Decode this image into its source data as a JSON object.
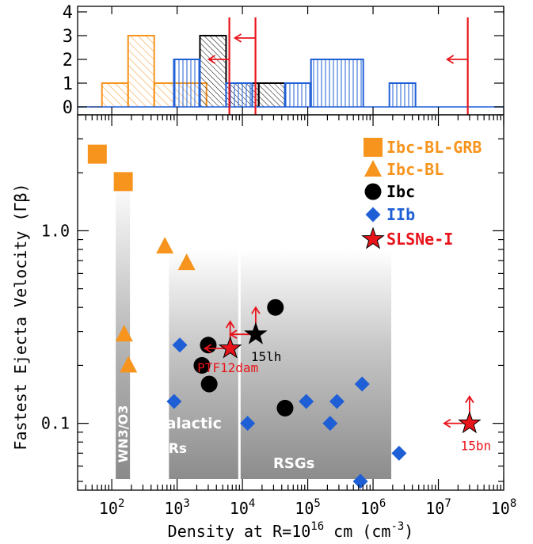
{
  "chart_data": [
    {
      "type": "bar",
      "panel": "histogram",
      "xlim_log10": [
        1.5,
        8.0
      ],
      "ylim": [
        0,
        4
      ],
      "yticks": [
        0,
        1,
        2,
        3,
        4
      ],
      "ytick_labels": [
        "0",
        "1",
        "2",
        "3",
        "4"
      ],
      "series": [
        {
          "name": "Ibc-BL",
          "color": "#f7941d",
          "hatch": "diagonal",
          "bins_log10": [
            [
              1.65,
              1.85,
              0
            ],
            [
              1.85,
              2.25,
              1
            ],
            [
              2.25,
              2.65,
              3
            ],
            [
              2.65,
              3.45,
              1
            ]
          ]
        },
        {
          "name": "Ibc",
          "color": "#000000",
          "hatch": "diagonal-dense",
          "bins_log10": [
            [
              3.35,
              3.75,
              3
            ],
            [
              3.75,
              4.25,
              1
            ],
            [
              4.25,
              4.65,
              1
            ]
          ]
        },
        {
          "name": "IIb",
          "color": "#1f5fd6",
          "hatch": "vertical",
          "bins_log10": [
            [
              2.95,
              3.35,
              2
            ],
            [
              3.75,
              4.15,
              1
            ],
            [
              4.65,
              5.05,
              1
            ],
            [
              5.05,
              5.85,
              2
            ],
            [
              6.25,
              6.65,
              1
            ]
          ]
        }
      ],
      "upper_limits_log10": [
        {
          "x": 3.8,
          "y": 2.0
        },
        {
          "x": 4.2,
          "y": 2.9
        },
        {
          "x": 7.45,
          "y": 2.0
        }
      ]
    },
    {
      "type": "scatter",
      "panel": "main",
      "xlabel": "Density at R=10",
      "xlabel_sup": "16",
      "xlabel_mid": " cm (cm",
      "xlabel_sup2": "-3",
      "xlabel_end": ")",
      "ylabel": "Fastest Ejecta Velocity (Γβ)",
      "x_scale": "log",
      "y_scale": "log",
      "xlim": [
        30,
        100000000
      ],
      "ylim": [
        0.045,
        4.0
      ],
      "xticks": [
        {
          "value": 100,
          "base": "10",
          "exp": "2"
        },
        {
          "value": 1000,
          "base": "10",
          "exp": "3"
        },
        {
          "value": 10000,
          "base": "10",
          "exp": "4"
        },
        {
          "value": 100000,
          "base": "10",
          "exp": "5"
        },
        {
          "value": 1000000,
          "base": "10",
          "exp": "6"
        },
        {
          "value": 10000000,
          "base": "10",
          "exp": "7"
        },
        {
          "value": 100000000,
          "base": "10",
          "exp": "8"
        }
      ],
      "yticks": [
        {
          "value": 0.1,
          "label": "0.1"
        },
        {
          "value": 1.0,
          "label": "1.0"
        }
      ],
      "legend": {
        "placement": "top-right",
        "entries": [
          {
            "label": "Ibc-BL-GRB",
            "marker": "square",
            "color": "#f7941d"
          },
          {
            "label": "Ibc-BL",
            "marker": "triangle",
            "color": "#f7941d"
          },
          {
            "label": "Ibc",
            "marker": "circle",
            "color": "#000000"
          },
          {
            "label": "IIb",
            "marker": "diamond",
            "color": "#1f5fd6"
          },
          {
            "label": "SLSNe-I",
            "marker": "star",
            "color": "#e8141b"
          }
        ]
      },
      "regions": [
        {
          "label": "WN3/O3",
          "x": [
            115,
            190
          ],
          "y": [
            0.045,
            1.85
          ],
          "orientation": "vertical"
        },
        {
          "label_line1": "Galactic",
          "label_line2": "WRs",
          "x": [
            750,
            9000
          ],
          "y": [
            0.045,
            0.8
          ]
        },
        {
          "label": "RSGs",
          "x": [
            9000,
            1900000
          ],
          "y": [
            0.045,
            0.8
          ]
        }
      ],
      "series": [
        {
          "name": "Ibc-BL-GRB",
          "marker": "square",
          "color": "#f7941d",
          "points": [
            {
              "x": 60,
              "y": 2.5
            },
            {
              "x": 150,
              "y": 1.8
            }
          ]
        },
        {
          "name": "Ibc-BL",
          "marker": "triangle",
          "color": "#f7941d",
          "points": [
            {
              "x": 650,
              "y": 0.83
            },
            {
              "x": 1400,
              "y": 0.68
            },
            {
              "x": 155,
              "y": 0.29
            },
            {
              "x": 180,
              "y": 0.2
            }
          ]
        },
        {
          "name": "Ibc",
          "marker": "circle",
          "color": "#000000",
          "points": [
            {
              "x": 3000,
              "y": 0.255
            },
            {
              "x": 2400,
              "y": 0.2
            },
            {
              "x": 3100,
              "y": 0.16
            },
            {
              "x": 32000,
              "y": 0.4
            },
            {
              "x": 45000,
              "y": 0.12
            }
          ]
        },
        {
          "name": "IIb",
          "marker": "diamond",
          "color": "#1f5fd6",
          "points": [
            {
              "x": 1100,
              "y": 0.255
            },
            {
              "x": 900,
              "y": 0.13
            },
            {
              "x": 12000,
              "y": 0.1
            },
            {
              "x": 95000,
              "y": 0.13
            },
            {
              "x": 220000,
              "y": 0.1
            },
            {
              "x": 280000,
              "y": 0.13
            },
            {
              "x": 680000,
              "y": 0.16
            },
            {
              "x": 640000,
              "y": 0.05
            },
            {
              "x": 2500000,
              "y": 0.07
            }
          ]
        },
        {
          "name": "SLSNe-I",
          "marker": "star",
          "color": "#e8141b",
          "points": [
            {
              "x": 6500,
              "y": 0.245,
              "label": "PTF12dam",
              "upper_limit": true
            },
            {
              "x": 30000000,
              "y": 0.1,
              "label": "15bn",
              "upper_limit": true
            }
          ]
        },
        {
          "name": "",
          "marker": "star",
          "color": "#000000",
          "points": [
            {
              "x": 16000,
              "y": 0.29,
              "label": "15lh",
              "upper_limit": true
            }
          ]
        }
      ]
    }
  ]
}
